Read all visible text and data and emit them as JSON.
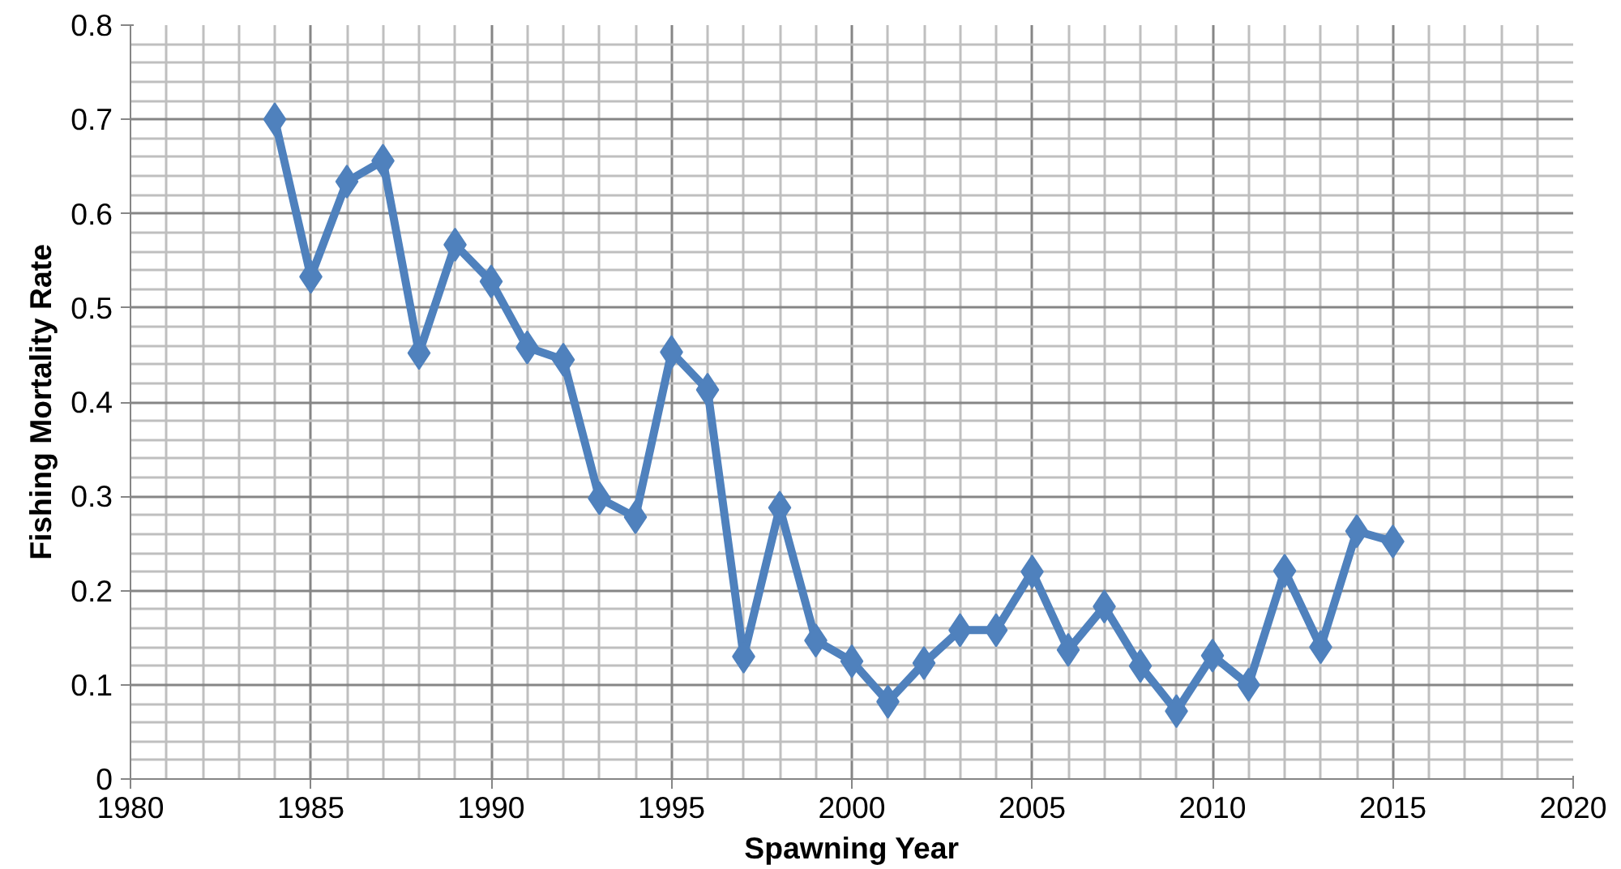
{
  "chart_data": {
    "type": "line",
    "xlabel": "Spawning Year",
    "ylabel": "Fishing Mortality Rate",
    "x": [
      1984,
      1985,
      1986,
      1987,
      1988,
      1989,
      1990,
      1991,
      1992,
      1993,
      1994,
      1995,
      1996,
      1997,
      1998,
      1999,
      2000,
      2001,
      2002,
      2003,
      2004,
      2005,
      2006,
      2007,
      2008,
      2009,
      2010,
      2011,
      2012,
      2013,
      2014,
      2015
    ],
    "series": [
      {
        "color": "#4f81bd",
        "values": [
          0.7,
          0.533,
          0.634,
          0.656,
          0.452,
          0.567,
          0.528,
          0.458,
          0.445,
          0.298,
          0.278,
          0.453,
          0.413,
          0.13,
          0.288,
          0.147,
          0.125,
          0.082,
          0.123,
          0.158,
          0.158,
          0.22,
          0.137,
          0.183,
          0.12,
          0.072,
          0.131,
          0.1,
          0.221,
          0.14,
          0.263,
          0.252
        ]
      }
    ],
    "xlim": [
      1980,
      2020
    ],
    "xticks": [
      1980,
      1985,
      1990,
      1995,
      2000,
      2005,
      2010,
      2015,
      2020
    ],
    "ylim": [
      0,
      0.8
    ],
    "yticks": [
      {
        "value": 0,
        "label": "0"
      },
      0.1,
      0.2,
      0.3,
      0.4,
      0.5,
      0.6,
      0.7,
      0.8
    ],
    "grid": true,
    "marker": "diamond",
    "line_style": "solid"
  }
}
